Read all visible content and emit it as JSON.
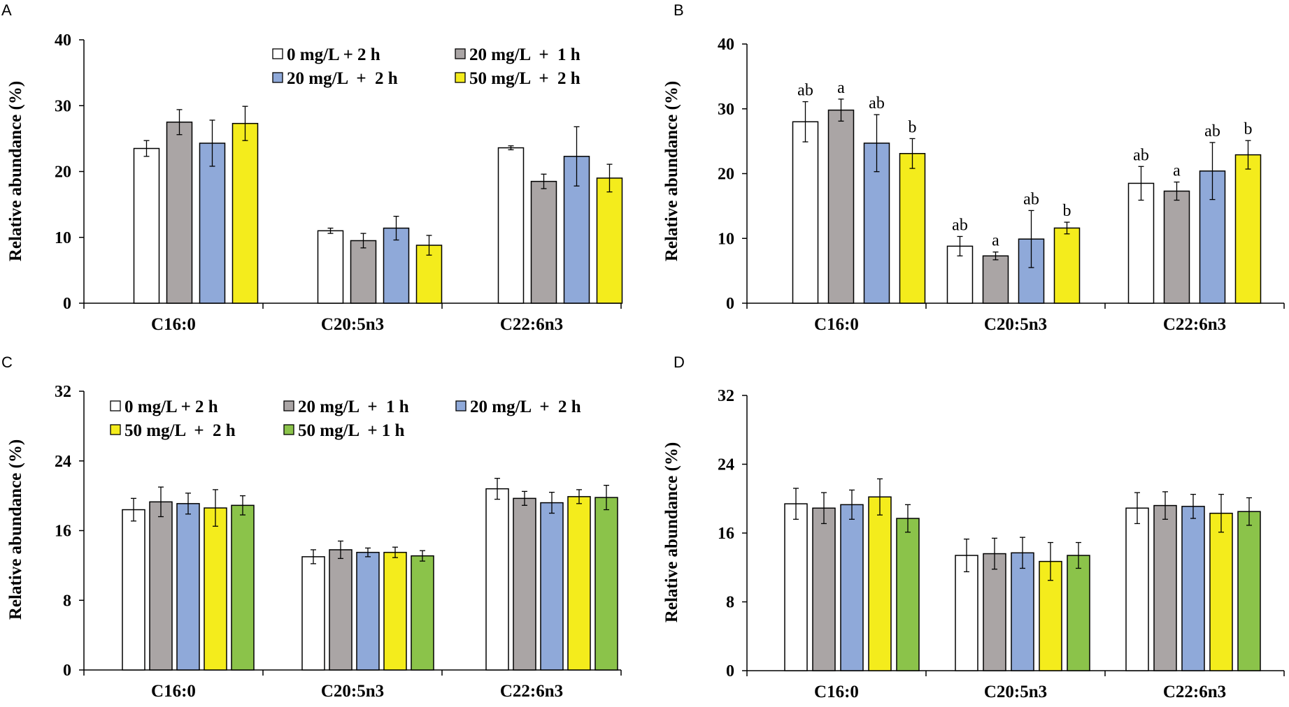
{
  "chart_data": [
    {
      "panel": "A",
      "type": "bar",
      "ylabel": "Relative abundance (%)",
      "ylim": [
        0,
        40
      ],
      "yticks": [
        "0",
        "10",
        "20",
        "30",
        "40"
      ],
      "categories": [
        "C16:0",
        "C20:5n3",
        "C22:6n3"
      ],
      "legend": {
        "placement": "top-right",
        "rows": [
          [
            "0 mg/L + 2 h",
            "20 mg/L  +  1 h"
          ],
          [
            "20 mg/L  +  2 h",
            "50 mg/L  +  2 h"
          ]
        ]
      },
      "series": [
        {
          "name": "0 mg/L + 2 h",
          "color": "#ffffff",
          "values": [
            23.5,
            11.0,
            23.6
          ],
          "errors": [
            1.2,
            0.4,
            0.3
          ],
          "annotations": []
        },
        {
          "name": "20 mg/L  +  1 h",
          "color": "#aaa5a5",
          "values": [
            27.5,
            9.5,
            18.5
          ],
          "errors": [
            1.9,
            1.1,
            1.1
          ],
          "annotations": []
        },
        {
          "name": "20 mg/L  +  2 h",
          "color": "#8fa9d9",
          "values": [
            24.3,
            11.4,
            22.3
          ],
          "errors": [
            3.5,
            1.8,
            4.5
          ],
          "annotations": []
        },
        {
          "name": "50 mg/L  +  2 h",
          "color": "#f4ec1c",
          "values": [
            27.3,
            8.8,
            19.0
          ],
          "errors": [
            2.6,
            1.5,
            2.1
          ],
          "annotations": []
        }
      ]
    },
    {
      "panel": "B",
      "type": "bar",
      "ylabel": "Relative abundance (%)",
      "ylim": [
        0,
        40
      ],
      "yticks": [
        "0",
        "10",
        "20",
        "30",
        "40"
      ],
      "categories": [
        "C16:0",
        "C20:5n3",
        "C22:6n3"
      ],
      "legend": null,
      "series": [
        {
          "name": "0 mg/L + 2 h",
          "color": "#ffffff",
          "values": [
            28.0,
            8.8,
            18.5
          ],
          "errors": [
            3.1,
            1.5,
            2.6
          ],
          "annotations": [
            "ab",
            "ab",
            "ab"
          ]
        },
        {
          "name": "20 mg/L  +  1 h",
          "color": "#aaa5a5",
          "values": [
            29.8,
            7.3,
            17.3
          ],
          "errors": [
            1.7,
            0.6,
            1.4
          ],
          "annotations": [
            "a",
            "a",
            "a"
          ]
        },
        {
          "name": "20 mg/L  +  2 h",
          "color": "#8fa9d9",
          "values": [
            24.7,
            9.9,
            20.4
          ],
          "errors": [
            4.4,
            4.4,
            4.4
          ],
          "annotations": [
            "ab",
            "ab",
            "ab"
          ]
        },
        {
          "name": "50 mg/L  +  2 h",
          "color": "#f4ec1c",
          "values": [
            23.1,
            11.6,
            22.9
          ],
          "errors": [
            2.3,
            0.9,
            2.2
          ],
          "annotations": [
            "b",
            "b",
            "b"
          ]
        }
      ]
    },
    {
      "panel": "C",
      "type": "bar",
      "ylabel": "Relative abundance (%)",
      "ylim": [
        0,
        32
      ],
      "yticks": [
        "0",
        "8",
        "16",
        "24",
        "32"
      ],
      "categories": [
        "C16:0",
        "C20:5n3",
        "C22:6n3"
      ],
      "legend": {
        "placement": "top",
        "rows": [
          [
            "0 mg/L + 2 h",
            "20 mg/L  +  1 h",
            "20 mg/L  +  2 h"
          ],
          [
            "50 mg/L  +  2 h",
            "50 mg/L  + 1 h"
          ]
        ]
      },
      "series": [
        {
          "name": "0 mg/L + 2 h",
          "color": "#ffffff",
          "values": [
            18.4,
            13.0,
            20.8
          ],
          "errors": [
            1.3,
            0.8,
            1.2
          ],
          "annotations": []
        },
        {
          "name": "20 mg/L  +  1 h",
          "color": "#aaa5a5",
          "values": [
            19.3,
            13.8,
            19.7
          ],
          "errors": [
            1.7,
            1.0,
            0.8
          ],
          "annotations": []
        },
        {
          "name": "20 mg/L  +  2 h",
          "color": "#8fa9d9",
          "values": [
            19.1,
            13.5,
            19.2
          ],
          "errors": [
            1.2,
            0.5,
            1.2
          ],
          "annotations": []
        },
        {
          "name": "50 mg/L  +  2 h",
          "color": "#f4ec1c",
          "values": [
            18.6,
            13.5,
            19.9
          ],
          "errors": [
            2.1,
            0.6,
            0.8
          ],
          "annotations": []
        },
        {
          "name": "50 mg/L  + 1 h",
          "color": "#8bc34a",
          "values": [
            18.9,
            13.1,
            19.8
          ],
          "errors": [
            1.1,
            0.6,
            1.4
          ],
          "annotations": []
        }
      ]
    },
    {
      "panel": "D",
      "type": "bar",
      "ylabel": "Relative abundance (%)",
      "ylim": [
        0,
        32
      ],
      "yticks": [
        "0",
        "8",
        "16",
        "24",
        "32"
      ],
      "categories": [
        "C16:0",
        "C20:5n3",
        "C22:6n3"
      ],
      "legend": null,
      "series": [
        {
          "name": "0 mg/L + 2 h",
          "color": "#ffffff",
          "values": [
            19.4,
            13.4,
            18.9
          ],
          "errors": [
            1.8,
            1.9,
            1.8
          ],
          "annotations": []
        },
        {
          "name": "20 mg/L  +  1 h",
          "color": "#aaa5a5",
          "values": [
            18.9,
            13.6,
            19.2
          ],
          "errors": [
            1.8,
            1.8,
            1.6
          ],
          "annotations": []
        },
        {
          "name": "20 mg/L  +  2 h",
          "color": "#8fa9d9",
          "values": [
            19.3,
            13.7,
            19.1
          ],
          "errors": [
            1.7,
            1.8,
            1.4
          ],
          "annotations": []
        },
        {
          "name": "50 mg/L  +  2 h",
          "color": "#f4ec1c",
          "values": [
            20.2,
            12.7,
            18.3
          ],
          "errors": [
            2.1,
            2.2,
            2.2
          ],
          "annotations": []
        },
        {
          "name": "50 mg/L  + 1 h",
          "color": "#8bc34a",
          "values": [
            17.7,
            13.4,
            18.5
          ],
          "errors": [
            1.6,
            1.5,
            1.6
          ],
          "annotations": []
        }
      ]
    }
  ]
}
